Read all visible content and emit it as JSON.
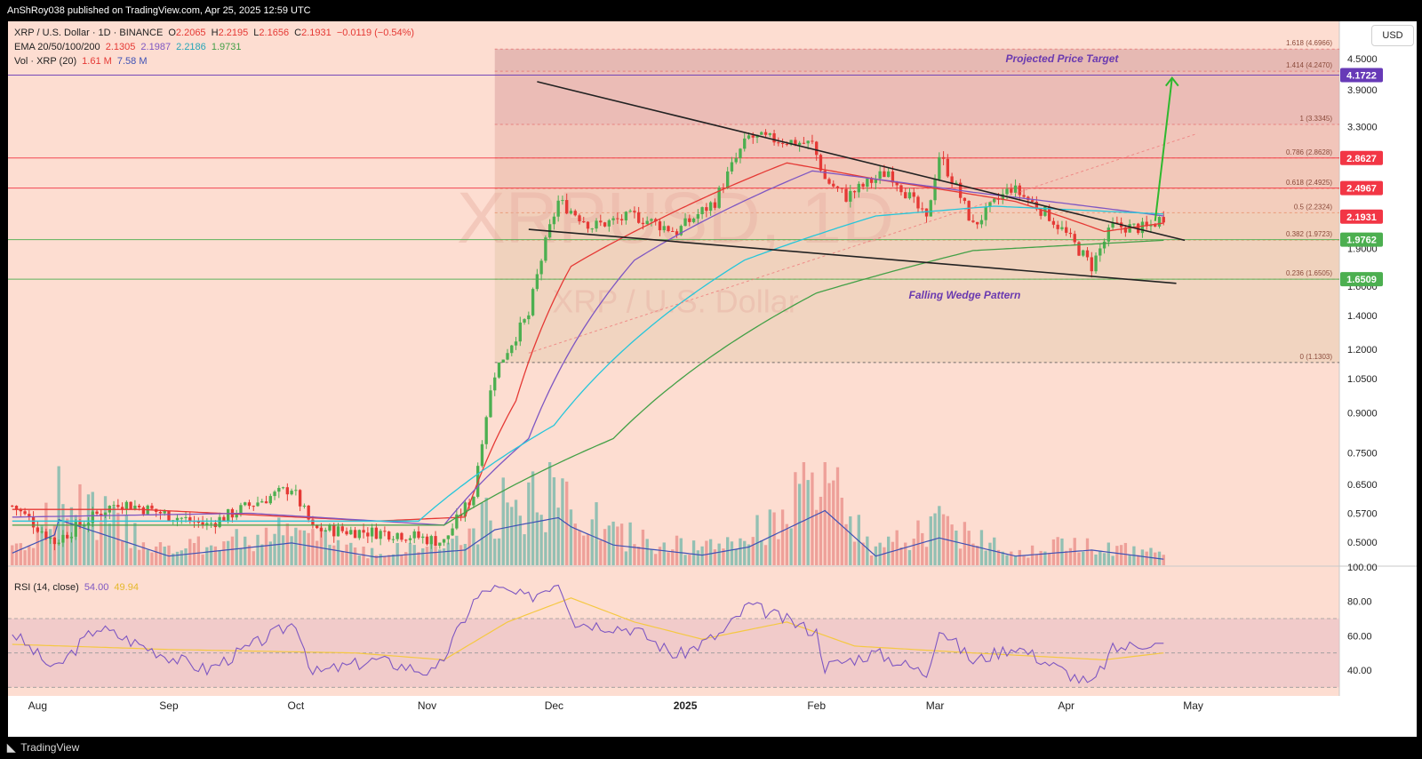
{
  "header": {
    "published_text": "AnShRoy038 published on TradingView.com, Apr 25, 2025 12:59 UTC"
  },
  "footer": {
    "brand": "TradingView"
  },
  "currency_button": "USD",
  "legend": {
    "symbol_line": "XRP / U.S. Dollar · 1D · BINANCE",
    "ohlc": {
      "o_label": "O",
      "o": "2.2065",
      "h_label": "H",
      "h": "2.2195",
      "l_label": "L",
      "l": "2.1656",
      "c_label": "C",
      "c": "2.1931",
      "change": "−0.0119 (−0.54%)"
    },
    "ema": {
      "label": "EMA 20/50/100/200",
      "v20": "2.1305",
      "v50": "2.1987",
      "v100": "2.2186",
      "v200": "1.9731"
    },
    "vol": {
      "label": "Vol · XRP (20)",
      "v1": "1.61 M",
      "v2": "7.58 M"
    },
    "rsi": {
      "label": "RSI (14, close)",
      "v1": "54.00",
      "v2": "49.94"
    }
  },
  "watermark": {
    "symbol": "XRPUSD, 1D",
    "name": "XRP / U.S. Dollar"
  },
  "colors": {
    "bg": "#fdddd1",
    "up": "#26a69a",
    "down": "#ef5350",
    "candle_up": "#4caf50",
    "candle_down": "#e53935",
    "ema20": "#e53935",
    "ema50": "#7e57c2",
    "ema100": "#26c6da",
    "ema200": "#43a047",
    "rsi": "#7e57c2",
    "rsi_ma": "#f5c842",
    "green_level": "#4caf50",
    "red_level": "#f23645",
    "purple_level": "#673ab7"
  },
  "chart_data": {
    "type": "candlestick",
    "title": "XRP / U.S. Dollar · 1D · BINANCE",
    "x_ticks": [
      {
        "label": "Aug",
        "date": "2024-08-01"
      },
      {
        "label": "Sep",
        "date": "2024-09-01"
      },
      {
        "label": "Oct",
        "date": "2024-10-01"
      },
      {
        "label": "Nov",
        "date": "2024-11-01"
      },
      {
        "label": "Dec",
        "date": "2024-12-01"
      },
      {
        "label": "2025",
        "date": "2025-01-01"
      },
      {
        "label": "Feb",
        "date": "2025-02-01"
      },
      {
        "label": "Mar",
        "date": "2025-03-01"
      },
      {
        "label": "Apr",
        "date": "2025-04-01"
      },
      {
        "label": "May",
        "date": "2025-05-01"
      }
    ],
    "x_range": [
      "2024-07-25",
      "2025-06-02"
    ],
    "y_scale": "log",
    "y_range": [
      0.45,
      5.2
    ],
    "y_ticks": [
      "4.5000",
      "3.9000",
      "3.3000",
      "2.1931",
      "1.9000",
      "1.6000",
      "1.4000",
      "1.2000",
      "1.0500",
      "0.9000",
      "0.7500",
      "0.6500",
      "0.5700",
      "0.5000"
    ],
    "price_anchors": [
      {
        "date": "2024-07-26",
        "price": 0.59
      },
      {
        "date": "2024-08-05",
        "price": 0.5
      },
      {
        "date": "2024-08-20",
        "price": 0.6
      },
      {
        "date": "2024-09-10",
        "price": 0.54
      },
      {
        "date": "2024-09-30",
        "price": 0.64
      },
      {
        "date": "2024-10-05",
        "price": 0.53
      },
      {
        "date": "2024-10-25",
        "price": 0.52
      },
      {
        "date": "2024-11-05",
        "price": 0.5
      },
      {
        "date": "2024-11-12",
        "price": 0.62
      },
      {
        "date": "2024-11-17",
        "price": 1.08
      },
      {
        "date": "2024-11-25",
        "price": 1.4
      },
      {
        "date": "2024-12-02",
        "price": 2.35
      },
      {
        "date": "2024-12-10",
        "price": 2.1
      },
      {
        "date": "2024-12-20",
        "price": 2.2
      },
      {
        "date": "2024-12-30",
        "price": 2.05
      },
      {
        "date": "2025-01-08",
        "price": 2.35
      },
      {
        "date": "2025-01-16",
        "price": 3.15
      },
      {
        "date": "2025-01-24",
        "price": 3.1
      },
      {
        "date": "2025-01-31",
        "price": 3.05
      },
      {
        "date": "2025-02-03",
        "price": 2.6
      },
      {
        "date": "2025-02-08",
        "price": 2.4
      },
      {
        "date": "2025-02-18",
        "price": 2.7
      },
      {
        "date": "2025-02-27",
        "price": 2.15
      },
      {
        "date": "2025-03-02",
        "price": 2.9
      },
      {
        "date": "2025-03-10",
        "price": 2.1
      },
      {
        "date": "2025-03-19",
        "price": 2.5
      },
      {
        "date": "2025-03-28",
        "price": 2.2
      },
      {
        "date": "2025-04-07",
        "price": 1.75
      },
      {
        "date": "2025-04-12",
        "price": 2.1
      },
      {
        "date": "2025-04-20",
        "price": 2.08
      },
      {
        "date": "2025-04-24",
        "price": 2.1931
      }
    ],
    "ema_series": [
      {
        "name": "EMA 20",
        "points": [
          {
            "date": "2024-07-26",
            "price": 0.58
          },
          {
            "date": "2024-08-25",
            "price": 0.58
          },
          {
            "date": "2024-10-20",
            "price": 0.55
          },
          {
            "date": "2024-11-10",
            "price": 0.56
          },
          {
            "date": "2024-11-22",
            "price": 0.95
          },
          {
            "date": "2024-12-05",
            "price": 1.75
          },
          {
            "date": "2024-12-25",
            "price": 2.15
          },
          {
            "date": "2025-01-25",
            "price": 2.8
          },
          {
            "date": "2025-02-15",
            "price": 2.6
          },
          {
            "date": "2025-03-20",
            "price": 2.35
          },
          {
            "date": "2025-04-10",
            "price": 2.05
          },
          {
            "date": "2025-04-24",
            "price": 2.13
          }
        ]
      },
      {
        "name": "EMA 50",
        "points": [
          {
            "date": "2024-07-26",
            "price": 0.56
          },
          {
            "date": "2024-09-20",
            "price": 0.57
          },
          {
            "date": "2024-11-05",
            "price": 0.54
          },
          {
            "date": "2024-11-25",
            "price": 0.8
          },
          {
            "date": "2024-12-20",
            "price": 1.8
          },
          {
            "date": "2025-01-31",
            "price": 2.7
          },
          {
            "date": "2025-03-10",
            "price": 2.45
          },
          {
            "date": "2025-04-24",
            "price": 2.2
          }
        ]
      },
      {
        "name": "EMA 100",
        "points": [
          {
            "date": "2024-07-26",
            "price": 0.55
          },
          {
            "date": "2024-10-30",
            "price": 0.55
          },
          {
            "date": "2024-12-01",
            "price": 0.85
          },
          {
            "date": "2025-01-15",
            "price": 1.8
          },
          {
            "date": "2025-02-15",
            "price": 2.2
          },
          {
            "date": "2025-03-15",
            "price": 2.3
          },
          {
            "date": "2025-04-24",
            "price": 2.22
          }
        ]
      },
      {
        "name": "EMA 200",
        "points": [
          {
            "date": "2024-07-26",
            "price": 0.54
          },
          {
            "date": "2024-11-05",
            "price": 0.54
          },
          {
            "date": "2024-12-15",
            "price": 0.8
          },
          {
            "date": "2025-02-01",
            "price": 1.55
          },
          {
            "date": "2025-03-10",
            "price": 1.88
          },
          {
            "date": "2025-04-24",
            "price": 1.97
          }
        ]
      }
    ],
    "fibonacci": [
      {
        "label": "1.618 (4.6966)",
        "price": 4.6966
      },
      {
        "label": "1.414 (4.2470)",
        "price": 4.247
      },
      {
        "label": "1 (3.3345)",
        "price": 3.3345
      },
      {
        "label": "0.786 (2.8628)",
        "price": 2.8628
      },
      {
        "label": "0.618 (2.4925)",
        "price": 2.4925
      },
      {
        "label": "0.5 (2.2324)",
        "price": 2.2324
      },
      {
        "label": "0.382 (1.9723)",
        "price": 1.9723
      },
      {
        "label": "0.236 (1.6505)",
        "price": 1.6505
      },
      {
        "label": "0 (1.1303)",
        "price": 1.1303
      }
    ],
    "levels": [
      {
        "label": "4.1722",
        "price": 4.1722,
        "color": "#673ab7"
      },
      {
        "label": "2.8627",
        "price": 2.8627,
        "color": "#f23645"
      },
      {
        "label": "2.4967",
        "price": 2.4967,
        "color": "#f23645"
      },
      {
        "label": "2.1931",
        "price": 2.1931,
        "color": "#f23645"
      },
      {
        "label": "1.9762",
        "price": 1.9762,
        "color": "#4caf50"
      },
      {
        "label": "1.6509",
        "price": 1.6509,
        "color": "#4caf50"
      }
    ],
    "trendlines": [
      {
        "name": "upper-wedge",
        "from": {
          "date": "2024-11-27",
          "price": 4.05
        },
        "to": {
          "date": "2025-04-29",
          "price": 1.97
        }
      },
      {
        "name": "lower-wedge",
        "from": {
          "date": "2024-11-25",
          "price": 2.07
        },
        "to": {
          "date": "2025-04-27",
          "price": 1.62
        }
      }
    ],
    "projection_arrow": {
      "from": {
        "date": "2025-04-22",
        "price": 2.15
      },
      "to": {
        "date": "2025-04-26",
        "price": 4.12
      }
    },
    "annotations": [
      {
        "text": "Projected Price Target",
        "date": "2025-03-31",
        "price": 4.42
      },
      {
        "text": "Falling Wedge Pattern",
        "date": "2025-03-08",
        "price": 1.51
      }
    ],
    "volume_anchors": [
      {
        "date": "2024-07-26",
        "v": 1.2
      },
      {
        "date": "2024-08-05",
        "v": 3.0
      },
      {
        "date": "2024-08-06",
        "v": 4.5
      },
      {
        "date": "2024-09-01",
        "v": 0.9
      },
      {
        "date": "2024-09-30",
        "v": 2.2
      },
      {
        "date": "2024-10-20",
        "v": 0.8
      },
      {
        "date": "2024-11-10",
        "v": 1.5
      },
      {
        "date": "2024-11-17",
        "v": 3.5
      },
      {
        "date": "2024-11-23",
        "v": 4.0
      },
      {
        "date": "2024-12-02",
        "v": 4.7
      },
      {
        "date": "2024-12-05",
        "v": 3.8
      },
      {
        "date": "2024-12-15",
        "v": 2.0
      },
      {
        "date": "2025-01-05",
        "v": 1.0
      },
      {
        "date": "2025-01-16",
        "v": 1.8
      },
      {
        "date": "2025-02-03",
        "v": 5.4
      },
      {
        "date": "2025-02-15",
        "v": 0.9
      },
      {
        "date": "2025-03-02",
        "v": 2.7
      },
      {
        "date": "2025-03-20",
        "v": 0.9
      },
      {
        "date": "2025-04-07",
        "v": 1.5
      },
      {
        "date": "2025-04-24",
        "v": 0.6
      }
    ],
    "rsi": {
      "y_ticks": [
        "100.00",
        "80.00",
        "60.00",
        "40.00"
      ],
      "y_range": [
        25,
        100
      ],
      "band": [
        30,
        70
      ],
      "anchors": [
        {
          "date": "2024-07-26",
          "v": 62
        },
        {
          "date": "2024-08-05",
          "v": 40
        },
        {
          "date": "2024-08-15",
          "v": 65
        },
        {
          "date": "2024-09-01",
          "v": 48
        },
        {
          "date": "2024-09-10",
          "v": 40
        },
        {
          "date": "2024-09-25",
          "v": 60
        },
        {
          "date": "2024-10-01",
          "v": 68
        },
        {
          "date": "2024-10-05",
          "v": 38
        },
        {
          "date": "2024-10-20",
          "v": 46
        },
        {
          "date": "2024-11-03",
          "v": 38
        },
        {
          "date": "2024-11-12",
          "v": 80
        },
        {
          "date": "2024-11-16",
          "v": 88
        },
        {
          "date": "2024-11-25",
          "v": 82
        },
        {
          "date": "2024-12-02",
          "v": 92
        },
        {
          "date": "2024-12-06",
          "v": 68
        },
        {
          "date": "2024-12-20",
          "v": 64
        },
        {
          "date": "2024-12-30",
          "v": 48
        },
        {
          "date": "2025-01-10",
          "v": 62
        },
        {
          "date": "2025-01-16",
          "v": 78
        },
        {
          "date": "2025-01-24",
          "v": 70
        },
        {
          "date": "2025-02-01",
          "v": 62
        },
        {
          "date": "2025-02-03",
          "v": 42
        },
        {
          "date": "2025-02-15",
          "v": 50
        },
        {
          "date": "2025-02-27",
          "v": 38
        },
        {
          "date": "2025-03-02",
          "v": 65
        },
        {
          "date": "2025-03-10",
          "v": 45
        },
        {
          "date": "2025-03-20",
          "v": 54
        },
        {
          "date": "2025-04-07",
          "v": 31
        },
        {
          "date": "2025-04-12",
          "v": 52
        },
        {
          "date": "2025-04-20",
          "v": 56
        },
        {
          "date": "2025-04-24",
          "v": 54
        }
      ],
      "ma_anchors": [
        {
          "date": "2024-07-26",
          "v": 55
        },
        {
          "date": "2024-09-01",
          "v": 52
        },
        {
          "date": "2024-10-15",
          "v": 50
        },
        {
          "date": "2024-11-05",
          "v": 46
        },
        {
          "date": "2024-11-20",
          "v": 68
        },
        {
          "date": "2024-12-05",
          "v": 82
        },
        {
          "date": "2024-12-20",
          "v": 68
        },
        {
          "date": "2025-01-05",
          "v": 58
        },
        {
          "date": "2025-01-25",
          "v": 68
        },
        {
          "date": "2025-02-10",
          "v": 54
        },
        {
          "date": "2025-03-10",
          "v": 50
        },
        {
          "date": "2025-04-10",
          "v": 46
        },
        {
          "date": "2025-04-24",
          "v": 50
        }
      ]
    }
  }
}
